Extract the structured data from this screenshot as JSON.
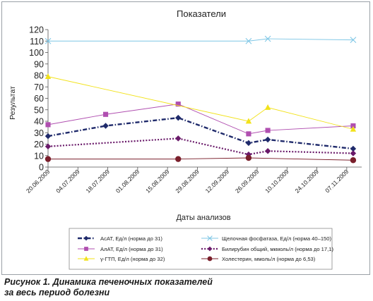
{
  "caption": {
    "line1": "Рисунок 1. Динамика печеночных показателей",
    "line2": "за весь период болезни"
  },
  "chart_data": {
    "type": "line",
    "title": "Показатели",
    "xlabel": "Даты анализов",
    "ylabel": "Результат",
    "ylim": [
      0,
      120
    ],
    "yticks": [
      0,
      10,
      20,
      30,
      40,
      50,
      60,
      70,
      80,
      90,
      100,
      110,
      120
    ],
    "xlim": [
      "2009-06-20",
      "2009-11-14"
    ],
    "xticks": [
      "2009-06-20",
      "2009-07-04",
      "2009-07-18",
      "2009-08-01",
      "2009-08-15",
      "2009-08-29",
      "2009-09-12",
      "2009-09-26",
      "2009-10-10",
      "2009-10-24",
      "2009-11-07"
    ],
    "xtick_labels": [
      "20.06.2009",
      "04.07.2009",
      "18.07.2009",
      "01.08.2009",
      "15.08.2009",
      "29.08.2009",
      "12.09.2009",
      "26.09.2009",
      "10.10.2009",
      "24.10.2009",
      "07.11.2009"
    ],
    "grid": false,
    "legend_position": "bottom",
    "series": [
      {
        "name": "АсАТ, Ед/л (норма до 31)",
        "color": "#1f2a6b",
        "dash": "dashdot",
        "marker": "diamond",
        "x": [
          "2009-06-20",
          "2009-07-17",
          "2009-08-20",
          "2009-09-22",
          "2009-10-01",
          "2009-11-10"
        ],
        "y": [
          27,
          36,
          43,
          21,
          24,
          16
        ]
      },
      {
        "name": "Щелочная фосфатаза, Ед/л (норма 40–150)",
        "color": "#7fc7e6",
        "dash": "solid",
        "marker": "x",
        "x": [
          "2009-06-20",
          "2009-09-22",
          "2009-10-01",
          "2009-11-10"
        ],
        "y": [
          110,
          110,
          112,
          111
        ]
      },
      {
        "name": "АлАТ, Ед/л (норма до 31)",
        "color": "#b04fb0",
        "dash": "solid",
        "marker": "square",
        "x": [
          "2009-06-20",
          "2009-07-17",
          "2009-08-20",
          "2009-09-22",
          "2009-10-01",
          "2009-11-10"
        ],
        "y": [
          37,
          46,
          55,
          29,
          32,
          36
        ]
      },
      {
        "name": "Билирубин общий, мкмоль/л (норма до 17,1)",
        "color": "#6a1a6a",
        "dash": "dotted",
        "marker": "diamond",
        "x": [
          "2009-06-20",
          "2009-08-20",
          "2009-09-22",
          "2009-10-01",
          "2009-11-10"
        ],
        "y": [
          18,
          25,
          11,
          14,
          12
        ]
      },
      {
        "name": "γ-ГТП, Ед/л (норма до 32)",
        "color": "#f2e21a",
        "dash": "solid",
        "marker": "triangle",
        "x": [
          "2009-06-20",
          "2009-09-22",
          "2009-10-01",
          "2009-11-10"
        ],
        "y": [
          79,
          40,
          52,
          33
        ]
      },
      {
        "name": "Холестерин, ммоль/л (норма до 6,53)",
        "color": "#7a1f2b",
        "dash": "solid",
        "marker": "circle",
        "x": [
          "2009-06-20",
          "2009-08-20",
          "2009-09-22",
          "2009-11-10"
        ],
        "y": [
          7,
          7,
          8,
          6
        ]
      }
    ]
  }
}
